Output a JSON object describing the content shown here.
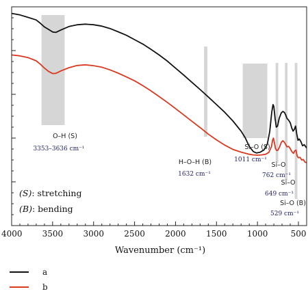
{
  "chart_data": {
    "type": "line",
    "xlabel": "Wavenumber (cm⁻¹)",
    "ylabel": "",
    "x_reversed": true,
    "xlim": [
      4000,
      400
    ],
    "ylim": [
      0,
      1
    ],
    "x_ticks": [
      {
        "value": 4000,
        "label": "4000"
      },
      {
        "value": 3500,
        "label": "3500"
      },
      {
        "value": 3000,
        "label": "3000"
      },
      {
        "value": 2500,
        "label": "2500"
      },
      {
        "value": 2000,
        "label": "2000"
      },
      {
        "value": 1500,
        "label": "1500"
      },
      {
        "value": 1000,
        "label": "1000"
      },
      {
        "value": 500,
        "label": "500"
      }
    ],
    "y_ticks_labeled": false,
    "grid": false,
    "legend_position": "below",
    "series": [
      {
        "name": "a",
        "color": "#111111",
        "points": [
          [
            4000,
            0.97
          ],
          [
            3900,
            0.963
          ],
          [
            3800,
            0.952
          ],
          [
            3700,
            0.94
          ],
          [
            3650,
            0.925
          ],
          [
            3600,
            0.908
          ],
          [
            3550,
            0.897
          ],
          [
            3500,
            0.885
          ],
          [
            3460,
            0.883
          ],
          [
            3400,
            0.894
          ],
          [
            3300,
            0.91
          ],
          [
            3200,
            0.918
          ],
          [
            3100,
            0.921
          ],
          [
            3000,
            0.918
          ],
          [
            2900,
            0.912
          ],
          [
            2800,
            0.901
          ],
          [
            2700,
            0.886
          ],
          [
            2600,
            0.87
          ],
          [
            2500,
            0.85
          ],
          [
            2400,
            0.83
          ],
          [
            2300,
            0.806
          ],
          [
            2200,
            0.78
          ],
          [
            2100,
            0.752
          ],
          [
            2000,
            0.72
          ],
          [
            1900,
            0.688
          ],
          [
            1800,
            0.655
          ],
          [
            1700,
            0.622
          ],
          [
            1600,
            0.588
          ],
          [
            1500,
            0.553
          ],
          [
            1400,
            0.518
          ],
          [
            1300,
            0.478
          ],
          [
            1200,
            0.432
          ],
          [
            1150,
            0.402
          ],
          [
            1100,
            0.362
          ],
          [
            1050,
            0.338
          ],
          [
            1011,
            0.332
          ],
          [
            970,
            0.335
          ],
          [
            920,
            0.346
          ],
          [
            880,
            0.372
          ],
          [
            850,
            0.43
          ],
          [
            825,
            0.52
          ],
          [
            810,
            0.553
          ],
          [
            800,
            0.544
          ],
          [
            785,
            0.49
          ],
          [
            770,
            0.45
          ],
          [
            755,
            0.455
          ],
          [
            735,
            0.49
          ],
          [
            710,
            0.515
          ],
          [
            690,
            0.522
          ],
          [
            670,
            0.517
          ],
          [
            655,
            0.505
          ],
          [
            640,
            0.49
          ],
          [
            620,
            0.482
          ],
          [
            600,
            0.47
          ],
          [
            580,
            0.445
          ],
          [
            565,
            0.432
          ],
          [
            550,
            0.44
          ],
          [
            535,
            0.455
          ],
          [
            520,
            0.418
          ],
          [
            505,
            0.39
          ],
          [
            490,
            0.396
          ],
          [
            470,
            0.384
          ],
          [
            450,
            0.365
          ],
          [
            430,
            0.37
          ],
          [
            410,
            0.36
          ],
          [
            400,
            0.355
          ]
        ]
      },
      {
        "name": "b",
        "color": "#d9381e",
        "points": [
          [
            4000,
            0.78
          ],
          [
            3900,
            0.776
          ],
          [
            3800,
            0.768
          ],
          [
            3700,
            0.753
          ],
          [
            3650,
            0.738
          ],
          [
            3600,
            0.72
          ],
          [
            3550,
            0.705
          ],
          [
            3500,
            0.695
          ],
          [
            3460,
            0.696
          ],
          [
            3400,
            0.707
          ],
          [
            3300,
            0.722
          ],
          [
            3200,
            0.732
          ],
          [
            3100,
            0.735
          ],
          [
            3000,
            0.731
          ],
          [
            2900,
            0.724
          ],
          [
            2800,
            0.712
          ],
          [
            2700,
            0.697
          ],
          [
            2600,
            0.68
          ],
          [
            2500,
            0.662
          ],
          [
            2400,
            0.64
          ],
          [
            2300,
            0.616
          ],
          [
            2200,
            0.59
          ],
          [
            2100,
            0.563
          ],
          [
            2000,
            0.535
          ],
          [
            1900,
            0.506
          ],
          [
            1800,
            0.477
          ],
          [
            1700,
            0.448
          ],
          [
            1600,
            0.418
          ],
          [
            1500,
            0.392
          ],
          [
            1400,
            0.368
          ],
          [
            1300,
            0.348
          ],
          [
            1200,
            0.336
          ],
          [
            1100,
            0.326
          ],
          [
            1050,
            0.323
          ],
          [
            1000,
            0.322
          ],
          [
            950,
            0.323
          ],
          [
            900,
            0.326
          ],
          [
            860,
            0.335
          ],
          [
            830,
            0.36
          ],
          [
            815,
            0.39
          ],
          [
            805,
            0.4
          ],
          [
            795,
            0.382
          ],
          [
            780,
            0.352
          ],
          [
            765,
            0.343
          ],
          [
            750,
            0.345
          ],
          [
            730,
            0.36
          ],
          [
            710,
            0.38
          ],
          [
            690,
            0.388
          ],
          [
            670,
            0.38
          ],
          [
            655,
            0.37
          ],
          [
            640,
            0.36
          ],
          [
            620,
            0.362
          ],
          [
            600,
            0.352
          ],
          [
            580,
            0.338
          ],
          [
            560,
            0.33
          ],
          [
            545,
            0.342
          ],
          [
            530,
            0.345
          ],
          [
            515,
            0.318
          ],
          [
            500,
            0.31
          ],
          [
            480,
            0.312
          ],
          [
            460,
            0.3
          ],
          [
            440,
            0.302
          ],
          [
            420,
            0.29
          ],
          [
            400,
            0.288
          ]
        ]
      }
    ],
    "bands": [
      {
        "from": 3636,
        "to": 3353,
        "bond": "O–H (S)",
        "range_label": "3353–3636 cm⁻¹"
      },
      {
        "from": 1652,
        "to": 1612,
        "bond": "H–O–H (B)",
        "range_label": "1632 cm⁻¹"
      },
      {
        "from": 1180,
        "to": 880,
        "bond": "Si–O (S)",
        "range_label": "1011 cm⁻¹"
      },
      {
        "from": 778,
        "to": 746,
        "bond": "Si–O",
        "range_label": "762 cm⁻¹"
      },
      {
        "from": 665,
        "to": 633,
        "bond": "Si–O",
        "range_label": "649 cm⁻¹"
      },
      {
        "from": 545,
        "to": 513,
        "bond": "Si–O (B)",
        "range_label": "529 cm⁻¹"
      }
    ],
    "annotations": [
      {
        "key": "(S)",
        "text": ": stretching"
      },
      {
        "key": "(B)",
        "text": ": bending"
      }
    ]
  }
}
